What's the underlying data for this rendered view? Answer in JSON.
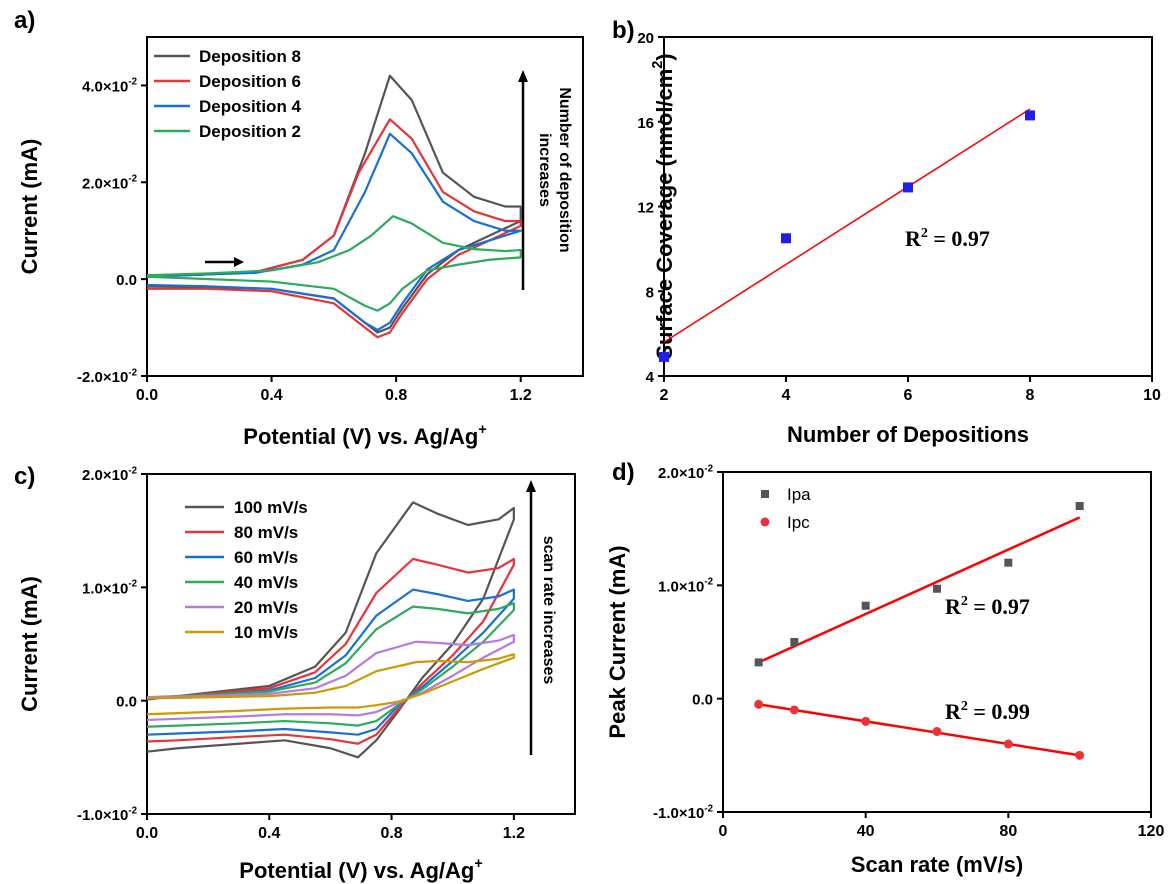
{
  "chart_data": [
    {
      "panel_label": "a)",
      "type": "line",
      "xlabel": "Potential (V) vs. Ag/Ag",
      "xlabel_sup": "+",
      "ylabel": "Current (mA)",
      "xlim": [
        0.0,
        1.4
      ],
      "ylim": [
        -0.02,
        0.05
      ],
      "xticks": [
        0.0,
        0.4,
        0.8,
        1.2
      ],
      "xtick_labels": [
        "0.0",
        "0.4",
        "0.8",
        "1.2"
      ],
      "yticks": [
        -0.02,
        0.0,
        0.02,
        0.04
      ],
      "ytick_labels": [
        "-2.0×10",
        "0.0",
        "2.0×10",
        "4.0×10"
      ],
      "ytick_sups": [
        "-2",
        "",
        "-2",
        "-2"
      ],
      "legend_position": "top-left",
      "annotation_arrow_text": [
        "Number of deposition",
        "increases"
      ],
      "series": [
        {
          "name": "Deposition 8",
          "color": "#555555",
          "x": [
            0.0,
            0.2,
            0.35,
            0.5,
            0.6,
            0.7,
            0.78,
            0.85,
            0.95,
            1.05,
            1.15,
            1.2,
            1.2,
            1.1,
            1.0,
            0.9,
            0.82,
            0.78,
            0.74,
            0.7,
            0.6,
            0.4,
            0.2,
            0.0
          ],
          "y": [
            0.0005,
            0.001,
            0.0015,
            0.004,
            0.009,
            0.026,
            0.042,
            0.037,
            0.022,
            0.017,
            0.015,
            0.015,
            0.012,
            0.009,
            0.006,
            0.001,
            -0.006,
            -0.01,
            -0.011,
            -0.009,
            -0.004,
            -0.002,
            -0.0017,
            -0.0015
          ]
        },
        {
          "name": "Deposition 6",
          "color": "#e8333b",
          "x": [
            0.0,
            0.2,
            0.35,
            0.5,
            0.6,
            0.68,
            0.78,
            0.85,
            0.95,
            1.05,
            1.15,
            1.2,
            1.2,
            1.1,
            1.0,
            0.9,
            0.82,
            0.78,
            0.74,
            0.7,
            0.6,
            0.4,
            0.2,
            0.0
          ],
          "y": [
            0.0005,
            0.001,
            0.0015,
            0.004,
            0.009,
            0.022,
            0.033,
            0.029,
            0.018,
            0.014,
            0.012,
            0.012,
            0.011,
            0.008,
            0.005,
            0.0,
            -0.007,
            -0.011,
            -0.012,
            -0.01,
            -0.005,
            -0.0025,
            -0.002,
            -0.002
          ]
        },
        {
          "name": "Deposition 4",
          "color": "#1a6fd6",
          "x": [
            0.0,
            0.2,
            0.35,
            0.5,
            0.6,
            0.7,
            0.78,
            0.85,
            0.95,
            1.05,
            1.15,
            1.2,
            1.2,
            1.1,
            1.0,
            0.9,
            0.82,
            0.78,
            0.74,
            0.7,
            0.6,
            0.4,
            0.2,
            0.0
          ],
          "y": [
            0.0005,
            0.001,
            0.0013,
            0.003,
            0.006,
            0.018,
            0.03,
            0.026,
            0.016,
            0.012,
            0.01,
            0.01,
            0.01,
            0.008,
            0.006,
            0.002,
            -0.005,
            -0.009,
            -0.0105,
            -0.009,
            -0.004,
            -0.002,
            -0.0015,
            -0.0012
          ]
        },
        {
          "name": "Deposition 2",
          "color": "#2eaa5c",
          "x": [
            0.0,
            0.2,
            0.4,
            0.55,
            0.65,
            0.72,
            0.79,
            0.85,
            0.95,
            1.05,
            1.15,
            1.2,
            1.2,
            1.1,
            1.0,
            0.9,
            0.82,
            0.78,
            0.74,
            0.7,
            0.6,
            0.4,
            0.2,
            0.0
          ],
          "y": [
            0.0008,
            0.0012,
            0.0018,
            0.0035,
            0.006,
            0.009,
            0.013,
            0.0115,
            0.0075,
            0.0062,
            0.0058,
            0.006,
            0.0045,
            0.004,
            0.003,
            0.0018,
            -0.002,
            -0.005,
            -0.0065,
            -0.0055,
            -0.002,
            -0.0005,
            0.0,
            0.0005
          ]
        }
      ]
    },
    {
      "panel_label": "b)",
      "type": "scatter",
      "xlabel": "Number of Depositions",
      "ylabel": "Surface Coverage (nmol/cm",
      "ylabel_sup": "2",
      "ylabel_end": ")",
      "xlim": [
        2,
        10
      ],
      "ylim": [
        4,
        20
      ],
      "xticks": [
        2,
        4,
        6,
        8,
        10
      ],
      "xtick_labels": [
        "2",
        "4",
        "6",
        "8",
        "10"
      ],
      "yticks": [
        4,
        8,
        12,
        16,
        20
      ],
      "ytick_labels": [
        "4",
        "8",
        "12",
        "16",
        "20"
      ],
      "points_color": "#1f1fe8",
      "points": [
        {
          "x": 2,
          "y": 4.9
        },
        {
          "x": 4,
          "y": 10.5
        },
        {
          "x": 6,
          "y": 12.9
        },
        {
          "x": 8,
          "y": 16.3
        }
      ],
      "fit_color": "#ff0000",
      "fit": {
        "x0": 2,
        "y0": 5.6,
        "x1": 8,
        "y1": 16.6
      },
      "r2_text": "R",
      "r2_sup": "2",
      "r2_value": " = 0.97"
    },
    {
      "panel_label": "c)",
      "type": "line",
      "xlabel": "Potential (V) vs. Ag/Ag",
      "xlabel_sup": "+",
      "ylabel": "Current (mA)",
      "xlim": [
        0.0,
        1.4
      ],
      "ylim": [
        -0.01,
        0.02
      ],
      "xticks": [
        0.0,
        0.4,
        0.8,
        1.2
      ],
      "xtick_labels": [
        "0.0",
        "0.4",
        "0.8",
        "1.2"
      ],
      "yticks": [
        -0.01,
        0.0,
        0.01,
        0.02
      ],
      "ytick_labels": [
        "-1.0×10",
        "0.0",
        "1.0×10",
        "2.0×10"
      ],
      "ytick_sups": [
        "-2",
        "",
        "-2",
        "-2"
      ],
      "legend_position": "top-left",
      "annotation_arrow_text": [
        "scan rate increases"
      ],
      "series": [
        {
          "name": "100 mV/s",
          "color": "#555555",
          "x": [
            0.0,
            0.2,
            0.4,
            0.55,
            0.65,
            0.75,
            0.87,
            0.95,
            1.05,
            1.15,
            1.2,
            1.2,
            1.1,
            1.0,
            0.9,
            0.82,
            0.75,
            0.69,
            0.6,
            0.45,
            0.3,
            0.1,
            0.0
          ],
          "y": [
            0.0001,
            0.0007,
            0.0013,
            0.003,
            0.006,
            0.013,
            0.0175,
            0.0165,
            0.0155,
            0.016,
            0.017,
            0.016,
            0.009,
            0.005,
            0.002,
            -0.001,
            -0.0035,
            -0.005,
            -0.0042,
            -0.0035,
            -0.0038,
            -0.0042,
            -0.0045
          ]
        },
        {
          "name": "80 mV/s",
          "color": "#e8333b",
          "x": [
            0.0,
            0.2,
            0.4,
            0.55,
            0.65,
            0.75,
            0.87,
            0.95,
            1.05,
            1.15,
            1.2,
            1.2,
            1.1,
            1.0,
            0.9,
            0.82,
            0.75,
            0.69,
            0.6,
            0.45,
            0.3,
            0.1,
            0.0
          ],
          "y": [
            0.0002,
            0.0006,
            0.0011,
            0.0025,
            0.005,
            0.0095,
            0.0125,
            0.012,
            0.0113,
            0.0117,
            0.0125,
            0.012,
            0.007,
            0.004,
            0.0015,
            -0.0008,
            -0.003,
            -0.0038,
            -0.0034,
            -0.003,
            -0.0032,
            -0.0035,
            -0.0036
          ]
        },
        {
          "name": "60 mV/s",
          "color": "#1a6fd6",
          "x": [
            0.0,
            0.2,
            0.4,
            0.55,
            0.65,
            0.75,
            0.87,
            0.95,
            1.05,
            1.15,
            1.2,
            1.2,
            1.1,
            1.0,
            0.9,
            0.82,
            0.75,
            0.69,
            0.6,
            0.45,
            0.3,
            0.1,
            0.0
          ],
          "y": [
            0.0002,
            0.0005,
            0.0009,
            0.002,
            0.004,
            0.0075,
            0.0098,
            0.0094,
            0.0088,
            0.0092,
            0.0098,
            0.009,
            0.006,
            0.0035,
            0.0012,
            -0.0005,
            -0.0025,
            -0.003,
            -0.0028,
            -0.0025,
            -0.0027,
            -0.0029,
            -0.003
          ]
        },
        {
          "name": "40 mV/s",
          "color": "#2eaa5c",
          "x": [
            0.0,
            0.2,
            0.4,
            0.55,
            0.65,
            0.75,
            0.87,
            0.95,
            1.05,
            1.15,
            1.2,
            1.2,
            1.1,
            1.0,
            0.9,
            0.82,
            0.75,
            0.69,
            0.6,
            0.45,
            0.3,
            0.1,
            0.0
          ],
          "y": [
            0.0003,
            0.0005,
            0.0008,
            0.0016,
            0.0033,
            0.0063,
            0.0083,
            0.0081,
            0.0077,
            0.0081,
            0.0086,
            0.008,
            0.0052,
            0.003,
            0.001,
            -0.0004,
            -0.0018,
            -0.0022,
            -0.002,
            -0.0018,
            -0.002,
            -0.0022,
            -0.0023
          ]
        },
        {
          "name": "20 mV/s",
          "color": "#b57be0",
          "x": [
            0.0,
            0.2,
            0.4,
            0.55,
            0.65,
            0.75,
            0.88,
            0.95,
            1.05,
            1.15,
            1.2,
            1.2,
            1.1,
            1.0,
            0.9,
            0.82,
            0.75,
            0.69,
            0.6,
            0.45,
            0.3,
            0.1,
            0.0
          ],
          "y": [
            0.0003,
            0.0004,
            0.0006,
            0.0011,
            0.0022,
            0.0042,
            0.0052,
            0.0051,
            0.0049,
            0.0053,
            0.0058,
            0.0052,
            0.0038,
            0.0022,
            0.0007,
            -0.0002,
            -0.001,
            -0.0013,
            -0.0012,
            -0.0012,
            -0.0014,
            -0.0016,
            -0.0017
          ]
        },
        {
          "name": "10 mV/s",
          "color": "#cc9a06",
          "x": [
            0.0,
            0.2,
            0.4,
            0.55,
            0.65,
            0.75,
            0.88,
            0.95,
            1.05,
            1.15,
            1.2,
            1.2,
            1.1,
            1.0,
            0.9,
            0.82,
            0.75,
            0.69,
            0.6,
            0.45,
            0.3,
            0.1,
            0.0
          ],
          "y": [
            0.0002,
            0.0003,
            0.0004,
            0.0007,
            0.0013,
            0.0026,
            0.0034,
            0.0035,
            0.0034,
            0.0037,
            0.0041,
            0.0038,
            0.0028,
            0.0017,
            0.0006,
            -0.0001,
            -0.0004,
            -0.0006,
            -0.0006,
            -0.0007,
            -0.0009,
            -0.0011,
            -0.0012
          ]
        }
      ]
    },
    {
      "panel_label": "d)",
      "type": "scatter",
      "xlabel": "Scan rate (mV/s)",
      "ylabel": "Peak Current (mA)",
      "xlim": [
        0,
        120
      ],
      "ylim": [
        -0.01,
        0.02
      ],
      "xticks": [
        0,
        40,
        80,
        120
      ],
      "xtick_labels": [
        "0",
        "40",
        "80",
        "120"
      ],
      "yticks": [
        -0.01,
        0.0,
        0.01,
        0.02
      ],
      "ytick_labels": [
        "-1.0×10",
        "0.0",
        "1.0×10",
        "2.0×10"
      ],
      "ytick_sups": [
        "-2",
        "",
        "-2",
        "-2"
      ],
      "legend_position": "top-left",
      "series": [
        {
          "name": "Ipa",
          "color": "#555555",
          "marker": "square",
          "x": [
            10,
            20,
            40,
            60,
            80,
            100
          ],
          "y": [
            0.0032,
            0.005,
            0.0082,
            0.0097,
            0.012,
            0.017
          ],
          "fit": {
            "x0": 10,
            "y0": 0.0032,
            "x1": 100,
            "y1": 0.016
          },
          "fit_color": "#ff0000",
          "r2_value": " = 0.97"
        },
        {
          "name": "Ipc",
          "color": "#e8333b",
          "marker": "circle",
          "x": [
            10,
            20,
            40,
            60,
            80,
            100
          ],
          "y": [
            -0.0005,
            -0.001,
            -0.002,
            -0.0029,
            -0.004,
            -0.005
          ],
          "fit": {
            "x0": 10,
            "y0": -0.0005,
            "x1": 100,
            "y1": -0.005
          },
          "fit_color": "#ff0000",
          "r2_value": " = 0.99"
        }
      ],
      "r2_text": "R",
      "r2_sup": "2"
    }
  ]
}
